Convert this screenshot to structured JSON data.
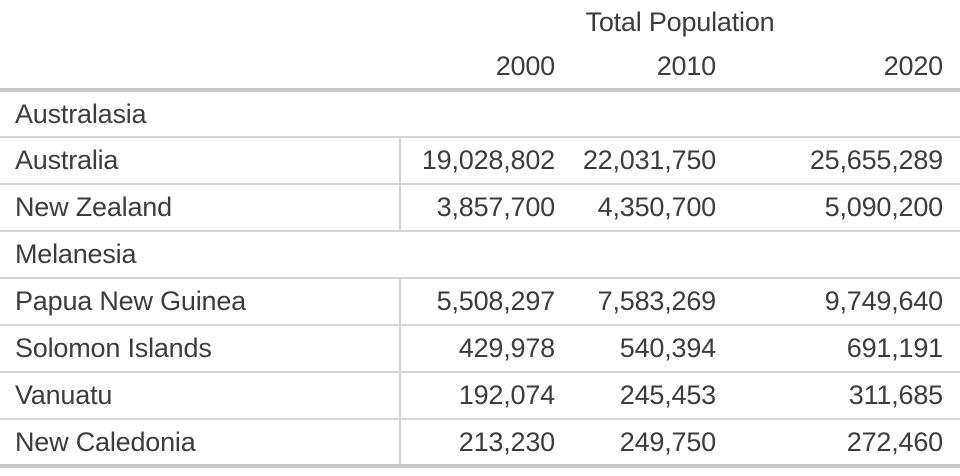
{
  "chart_data": {
    "type": "table",
    "title": "Total Population",
    "columns": [
      "2000",
      "2010",
      "2020"
    ],
    "row_groups": [
      {
        "group": "Australasia",
        "rows": [
          {
            "label": "Australia",
            "values": [
              19028802,
              22031750,
              25655289
            ]
          },
          {
            "label": "New Zealand",
            "values": [
              3857700,
              4350700,
              5090200
            ]
          }
        ]
      },
      {
        "group": "Melanesia",
        "rows": [
          {
            "label": "Papua New Guinea",
            "values": [
              5508297,
              7583269,
              9749640
            ]
          },
          {
            "label": "Solomon Islands",
            "values": [
              429978,
              540394,
              691191
            ]
          },
          {
            "label": "Vanuatu",
            "values": [
              192074,
              245453,
              311685
            ]
          },
          {
            "label": "New Caledonia",
            "values": [
              213230,
              249750,
              272460
            ]
          }
        ]
      }
    ],
    "layout": {
      "grid": "horizontal-rules-and-column-divider",
      "value_alignment": "right"
    }
  },
  "table": {
    "title": "Total Population",
    "col_headers": [
      "2000",
      "2010",
      "2020"
    ],
    "sections": [
      {
        "name": "Australasia",
        "rows": [
          {
            "name": "Australia",
            "values": [
              "19,028,802",
              "22,031,750",
              "25,655,289"
            ]
          },
          {
            "name": "New Zealand",
            "values": [
              "3,857,700",
              "4,350,700",
              "5,090,200"
            ]
          }
        ]
      },
      {
        "name": "Melanesia",
        "rows": [
          {
            "name": "Papua New Guinea",
            "values": [
              "5,508,297",
              "7,583,269",
              "9,749,640"
            ]
          },
          {
            "name": "Solomon Islands",
            "values": [
              "429,978",
              "540,394",
              "691,191"
            ]
          },
          {
            "name": "Vanuatu",
            "values": [
              "192,074",
              "245,453",
              "311,685"
            ]
          },
          {
            "name": "New Caledonia",
            "values": [
              "213,230",
              "249,750",
              "272,460"
            ]
          }
        ]
      }
    ],
    "colors": {
      "text": "#3d3d3d",
      "thick_rule": "#c9c9c9",
      "thin_rule": "#d5d5d5",
      "background": "#ffffff"
    }
  }
}
